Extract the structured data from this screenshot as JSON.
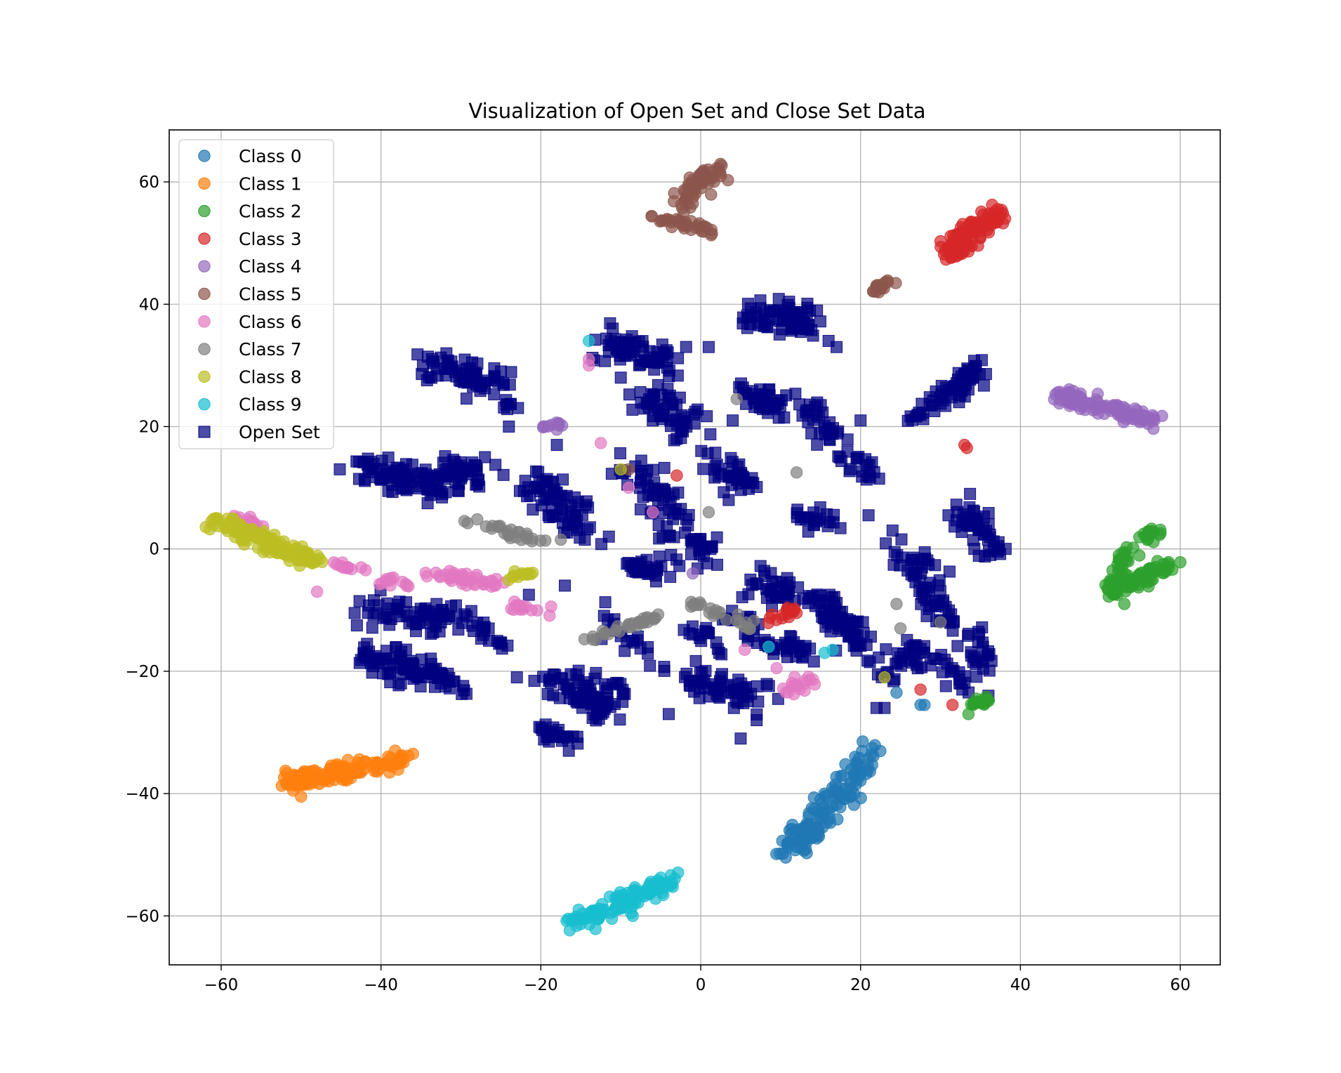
{
  "chart_data": {
    "type": "scatter",
    "title": "Visualization of Open Set and Close Set Data",
    "xlabel": "",
    "ylabel": "",
    "xlim": [
      -66.5,
      65
    ],
    "ylim": [
      -68,
      68.5
    ],
    "xticks": [
      -60,
      -40,
      -20,
      0,
      20,
      40,
      60
    ],
    "yticks": [
      -60,
      -40,
      -20,
      0,
      20,
      40,
      60
    ],
    "xtick_labels": [
      "−60",
      "−40",
      "−20",
      "0",
      "20",
      "40",
      "60"
    ],
    "ytick_labels": [
      "−60",
      "−40",
      "−20",
      "0",
      "20",
      "40",
      "60"
    ],
    "grid": true,
    "legend_position": "top-left",
    "series": [
      {
        "name": "Class 0",
        "color": "#1f77b4",
        "marker": "circle",
        "clusters": [
          {
            "x0": 11,
            "y0": -50,
            "x1": 21,
            "y1": -34,
            "spread": 1.6,
            "n": 140
          }
        ],
        "extra": [
          [
            24.5,
            -23.5
          ],
          [
            27.5,
            -25.5
          ],
          [
            28,
            -25.5
          ]
        ]
      },
      {
        "name": "Class 1",
        "color": "#ff7f0e",
        "marker": "circle",
        "clusters": [
          {
            "x0": -52,
            "y0": -38,
            "x1": -37,
            "y1": -34.5,
            "spread": 1.2,
            "n": 140
          }
        ],
        "extra": [
          [
            -36,
            -33.5
          ],
          [
            -50,
            -40.5
          ],
          [
            -51,
            -39.5
          ]
        ]
      },
      {
        "name": "Class 2",
        "color": "#2ca02c",
        "marker": "circle",
        "clusters": [
          {
            "x0": 51,
            "y0": -8.5,
            "x1": 53.5,
            "y1": 0,
            "spread": 0.9,
            "n": 50
          },
          {
            "x0": 53.5,
            "y0": -6,
            "x1": 59,
            "y1": -2.5,
            "spread": 0.9,
            "n": 50
          },
          {
            "x0": 55.5,
            "y0": 1.5,
            "x1": 57,
            "y1": 3.5,
            "spread": 0.7,
            "n": 15
          },
          {
            "x0": 33.5,
            "y0": -25,
            "x1": 37,
            "y1": -24.5,
            "spread": 0.5,
            "n": 18
          }
        ],
        "extra": [
          [
            33.5,
            -27
          ],
          [
            53,
            -9
          ]
        ]
      },
      {
        "name": "Class 3",
        "color": "#d62728",
        "marker": "circle",
        "clusters": [
          {
            "x0": 30.5,
            "y0": 48,
            "x1": 37,
            "y1": 55,
            "spread": 1.3,
            "n": 110
          },
          {
            "x0": 8.5,
            "y0": -11.5,
            "x1": 12,
            "y1": -10,
            "spread": 0.6,
            "n": 14
          }
        ],
        "extra": [
          [
            33,
            17
          ],
          [
            33.3,
            16.5
          ],
          [
            -3,
            12
          ],
          [
            27.5,
            -23
          ],
          [
            31.5,
            -25.5
          ]
        ]
      },
      {
        "name": "Class 4",
        "color": "#9467bd",
        "marker": "circle",
        "clusters": [
          {
            "x0": 45,
            "y0": 25,
            "x1": 57,
            "y1": 21,
            "spread": 1.1,
            "n": 100
          },
          {
            "x0": -20,
            "y0": 20,
            "x1": -17,
            "y1": 20.5,
            "spread": 0.3,
            "n": 10
          }
        ],
        "extra": [
          [
            -1,
            -4
          ],
          [
            -18,
            19.5
          ]
        ]
      },
      {
        "name": "Class 5",
        "color": "#8c564b",
        "marker": "circle",
        "clusters": [
          {
            "x0": -2.5,
            "y0": 57,
            "x1": 2.5,
            "y1": 62,
            "spread": 1.3,
            "n": 60
          },
          {
            "x0": -6.5,
            "y0": 54.5,
            "x1": 1.5,
            "y1": 52,
            "spread": 0.7,
            "n": 35
          },
          {
            "x0": 21.5,
            "y0": 42,
            "x1": 24,
            "y1": 44,
            "spread": 0.6,
            "n": 16
          }
        ],
        "extra": [
          [
            -9,
            13
          ]
        ]
      },
      {
        "name": "Class 6",
        "color": "#e377c2",
        "marker": "circle",
        "clusters": [
          {
            "x0": -46,
            "y0": -2.5,
            "x1": -41,
            "y1": -3.5,
            "spread": 0.5,
            "n": 12
          },
          {
            "x0": -40,
            "y0": -5,
            "x1": -35,
            "y1": -7,
            "spread": 0.6,
            "n": 12
          },
          {
            "x0": -34,
            "y0": -4,
            "x1": -25,
            "y1": -6,
            "spread": 0.8,
            "n": 40
          },
          {
            "x0": -24,
            "y0": -9,
            "x1": -19,
            "y1": -10,
            "spread": 0.6,
            "n": 14
          },
          {
            "x0": 10,
            "y0": -24,
            "x1": 14,
            "y1": -21,
            "spread": 0.8,
            "n": 20
          },
          {
            "x0": -58,
            "y0": 5,
            "x1": -54,
            "y1": 3,
            "spread": 0.8,
            "n": 14
          }
        ],
        "extra": [
          [
            -14,
            31
          ],
          [
            -14,
            30
          ],
          [
            -12.5,
            17.3
          ],
          [
            -9,
            10
          ],
          [
            5.5,
            -16.5
          ],
          [
            9.5,
            -19.5
          ],
          [
            -6,
            6
          ],
          [
            -48,
            -7
          ]
        ]
      },
      {
        "name": "Class 7",
        "color": "#7f7f7f",
        "marker": "circle",
        "clusters": [
          {
            "x0": -30,
            "y0": 5,
            "x1": -20,
            "y1": 1.5,
            "spread": 0.8,
            "n": 26
          },
          {
            "x0": -14,
            "y0": -14.5,
            "x1": -5,
            "y1": -11,
            "spread": 0.6,
            "n": 30
          },
          {
            "x0": -1,
            "y0": -9,
            "x1": 7,
            "y1": -13,
            "spread": 0.8,
            "n": 24
          }
        ],
        "extra": [
          [
            4.5,
            24.5
          ],
          [
            12,
            12.5
          ],
          [
            1,
            6
          ],
          [
            24.5,
            -9
          ],
          [
            -17.5,
            1.5
          ],
          [
            30,
            -12
          ],
          [
            25,
            -13
          ]
        ]
      },
      {
        "name": "Class 8",
        "color": "#bcbd22",
        "marker": "circle",
        "clusters": [
          {
            "x0": -60.5,
            "y0": 4.5,
            "x1": -48.5,
            "y1": -2,
            "spread": 1.1,
            "n": 130
          },
          {
            "x0": -24,
            "y0": -4.5,
            "x1": -21,
            "y1": -4,
            "spread": 0.4,
            "n": 12
          }
        ],
        "extra": [
          [
            23,
            -21
          ],
          [
            -10,
            13
          ]
        ]
      },
      {
        "name": "Class 9",
        "color": "#17becf",
        "marker": "circle",
        "clusters": [
          {
            "x0": -15.5,
            "y0": -61,
            "x1": -3.5,
            "y1": -54,
            "spread": 1.2,
            "n": 120
          }
        ],
        "extra": [
          [
            -14,
            34
          ],
          [
            15.5,
            -17
          ],
          [
            16.5,
            -16.5
          ],
          [
            8.5,
            -16
          ],
          [
            -8.5,
            -60
          ]
        ]
      },
      {
        "name": "Open Set",
        "color": "#000080",
        "marker": "square",
        "clusters": [
          {
            "x0": -34,
            "y0": 30,
            "x1": -25,
            "y1": 27,
            "spread": 1.8,
            "n": 70
          },
          {
            "x0": -25,
            "y0": 24,
            "x1": -23,
            "y1": 23,
            "spread": 0.6,
            "n": 8
          },
          {
            "x0": -42,
            "y0": 13,
            "x1": -31,
            "y1": 10,
            "spread": 2,
            "n": 100
          },
          {
            "x0": -33,
            "y0": 14,
            "x1": -26,
            "y1": 12,
            "spread": 1.5,
            "n": 30
          },
          {
            "x0": -21,
            "y0": 11,
            "x1": -14,
            "y1": 3,
            "spread": 2.2,
            "n": 70
          },
          {
            "x0": -13,
            "y0": 34,
            "x1": -4,
            "y1": 30,
            "spread": 2,
            "n": 70
          },
          {
            "x0": -7,
            "y0": 25,
            "x1": -1,
            "y1": 20,
            "spread": 2,
            "n": 60
          },
          {
            "x0": -9,
            "y0": 14,
            "x1": -3,
            "y1": 6,
            "spread": 2,
            "n": 50
          },
          {
            "x0": 6,
            "y0": 38,
            "x1": 14,
            "y1": 38,
            "spread": 1.8,
            "n": 70
          },
          {
            "x0": 6,
            "y0": 26,
            "x1": 10,
            "y1": 22,
            "spread": 1.8,
            "n": 40
          },
          {
            "x0": 13,
            "y0": 24,
            "x1": 17,
            "y1": 18,
            "spread": 1.5,
            "n": 30
          },
          {
            "x0": 18,
            "y0": 15,
            "x1": 22,
            "y1": 12,
            "spread": 1.2,
            "n": 20
          },
          {
            "x0": 2,
            "y0": 14,
            "x1": 7,
            "y1": 10,
            "spread": 1.8,
            "n": 40
          },
          {
            "x0": 11,
            "y0": 5,
            "x1": 17,
            "y1": 4,
            "spread": 1.2,
            "n": 22
          },
          {
            "x0": -9,
            "y0": -3,
            "x1": -4,
            "y1": -3,
            "spread": 1.4,
            "n": 40
          },
          {
            "x0": -4,
            "y0": 3,
            "x1": 2,
            "y1": -1,
            "spread": 1.5,
            "n": 30
          },
          {
            "x0": 7,
            "y0": -4,
            "x1": 13,
            "y1": -8,
            "spread": 1.8,
            "n": 40
          },
          {
            "x0": 15,
            "y0": -8,
            "x1": 19,
            "y1": -14,
            "spread": 1.8,
            "n": 50
          },
          {
            "x0": 25,
            "y0": 0,
            "x1": 31,
            "y1": -12,
            "spread": 1.8,
            "n": 60
          },
          {
            "x0": 33,
            "y0": 6,
            "x1": 37,
            "y1": -1,
            "spread": 1.5,
            "n": 50
          },
          {
            "x0": 29,
            "y0": 23,
            "x1": 35,
            "y1": 30,
            "spread": 1.2,
            "n": 50
          },
          {
            "x0": 26,
            "y0": 21,
            "x1": 29,
            "y1": 23,
            "spread": 0.8,
            "n": 10
          },
          {
            "x0": -42,
            "y0": -10,
            "x1": -29,
            "y1": -12,
            "spread": 1.8,
            "n": 70
          },
          {
            "x0": -42,
            "y0": -17,
            "x1": -33,
            "y1": -21,
            "spread": 1.8,
            "n": 80
          },
          {
            "x0": -33,
            "y0": -20,
            "x1": -30,
            "y1": -24,
            "spread": 1,
            "n": 15
          },
          {
            "x0": -18,
            "y0": -21,
            "x1": -12,
            "y1": -26,
            "spread": 2,
            "n": 60
          },
          {
            "x0": -20,
            "y0": -29,
            "x1": -16,
            "y1": -32,
            "spread": 1.2,
            "n": 25
          },
          {
            "x0": -13,
            "y0": -27,
            "x1": -10,
            "y1": -22,
            "spread": 1.5,
            "n": 25
          },
          {
            "x0": -2,
            "y0": -21,
            "x1": 7,
            "y1": -24,
            "spread": 2,
            "n": 60
          },
          {
            "x0": 8,
            "y0": -15,
            "x1": 14,
            "y1": -17,
            "spread": 1.5,
            "n": 30
          },
          {
            "x0": 18,
            "y0": -14,
            "x1": 24,
            "y1": -20,
            "spread": 1.5,
            "n": 30
          },
          {
            "x0": 25,
            "y0": -16,
            "x1": 33,
            "y1": -22,
            "spread": 1.8,
            "n": 40
          },
          {
            "x0": 33,
            "y0": -13,
            "x1": 36,
            "y1": -20,
            "spread": 1.2,
            "n": 25
          },
          {
            "x0": -28,
            "y0": -12,
            "x1": -25,
            "y1": -16,
            "spread": 1,
            "n": 15
          },
          {
            "x0": -12,
            "y0": -10,
            "x1": -6,
            "y1": -19,
            "spread": 1.5,
            "n": 20
          },
          {
            "x0": 4,
            "y0": -10,
            "x1": 6,
            "y1": -14,
            "spread": 1.5,
            "n": 20
          },
          {
            "x0": -1,
            "y0": -12,
            "x1": 2,
            "y1": -17,
            "spread": 1.2,
            "n": 15
          }
        ],
        "extra": [
          [
            -14.5,
            1.5
          ],
          [
            -21.5,
            -7.5
          ],
          [
            -23,
            -21
          ],
          [
            -17,
            -6
          ],
          [
            -6,
            21
          ],
          [
            -3,
            18
          ],
          [
            -24,
            20
          ],
          [
            -18,
            17
          ],
          [
            1,
            33
          ],
          [
            4,
            21
          ],
          [
            20,
            21
          ],
          [
            21,
            5.5
          ],
          [
            24,
            3
          ],
          [
            31,
            5.5
          ],
          [
            -1,
            -14
          ],
          [
            -4,
            -27
          ],
          [
            23,
            -26
          ],
          [
            22,
            -26
          ],
          [
            36,
            -24
          ],
          [
            -19,
            -31.5
          ],
          [
            -16.5,
            -33
          ],
          [
            5,
            -31
          ],
          [
            7,
            -28
          ],
          [
            17,
            33
          ],
          [
            16,
            34
          ],
          [
            -37.5,
            -22
          ],
          [
            -27,
            15
          ],
          [
            -10,
            28
          ],
          [
            3.5,
            8
          ]
        ]
      }
    ]
  }
}
